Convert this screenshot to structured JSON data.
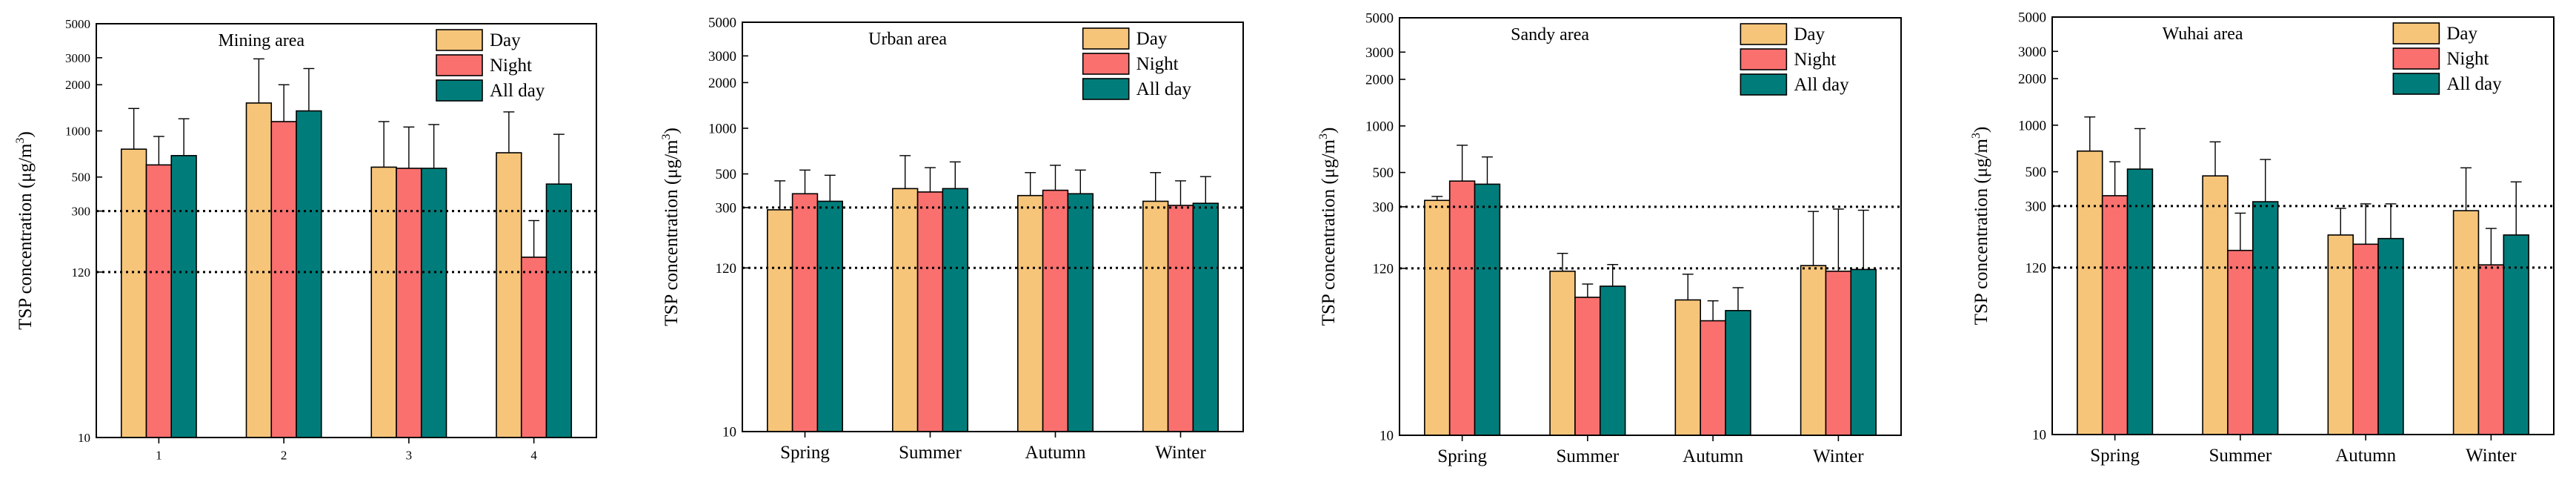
{
  "figure": {
    "colors": {
      "Day": "#f7c57a",
      "Night": "#fa706f",
      "All day": "#007d7a"
    },
    "reference_lines": [
      300,
      120
    ]
  },
  "chart_data": [
    {
      "type": "bar",
      "title": "Mining area",
      "ylabel": "TSP concentration (μg/m³)",
      "ylabel_main": "TSP concentration (μg/m",
      "ylabel_sup": "3",
      "ylabel_end": ")",
      "yscale": "log",
      "ylim": [
        10,
        5000
      ],
      "yticks": [
        10,
        120,
        300,
        500,
        1000,
        2000,
        3000,
        5000
      ],
      "categories": [
        "1",
        "2",
        "3",
        "4"
      ],
      "legend": [
        "Day",
        "Night",
        "All day"
      ],
      "series": [
        {
          "name": "Day",
          "values": [
            760,
            1520,
            580,
            720
          ],
          "errors": [
            1400,
            2950,
            1150,
            1330
          ]
        },
        {
          "name": "Night",
          "values": [
            600,
            1150,
            570,
            150
          ],
          "errors": [
            920,
            2000,
            1060,
            260
          ]
        },
        {
          "name": "All day",
          "values": [
            690,
            1350,
            570,
            450
          ],
          "errors": [
            1200,
            2550,
            1100,
            950
          ]
        }
      ]
    },
    {
      "type": "bar",
      "title": "Urban area",
      "ylabel": "TSP concentration (μg/m³)",
      "ylabel_main": "TSP concentration (μg/m",
      "ylabel_sup": "3",
      "ylabel_end": ")",
      "yscale": "log",
      "ylim": [
        10,
        5000
      ],
      "yticks": [
        10,
        120,
        300,
        500,
        1000,
        2000,
        3000,
        5000
      ],
      "categories": [
        "Spring",
        "Summer",
        "Autumn",
        "Winter"
      ],
      "legend": [
        "Day",
        "Night",
        "All day"
      ],
      "series": [
        {
          "name": "Day",
          "values": [
            290,
            400,
            360,
            330
          ],
          "errors": [
            450,
            660,
            510,
            510
          ]
        },
        {
          "name": "Night",
          "values": [
            370,
            380,
            390,
            310
          ],
          "errors": [
            530,
            550,
            570,
            450
          ]
        },
        {
          "name": "All day",
          "values": [
            330,
            400,
            370,
            320
          ],
          "errors": [
            490,
            600,
            530,
            480
          ]
        }
      ]
    },
    {
      "type": "bar",
      "title": "Sandy area",
      "ylabel": "TSP concentration (μg/m³)",
      "ylabel_main": "TSP concentration (μg/m",
      "ylabel_sup": "3",
      "ylabel_end": ")",
      "yscale": "log",
      "ylim": [
        10,
        5000
      ],
      "yticks": [
        10,
        120,
        300,
        500,
        1000,
        2000,
        3000,
        5000
      ],
      "categories": [
        "Spring",
        "Summer",
        "Autumn",
        "Winter"
      ],
      "legend": [
        "Day",
        "Night",
        "All day"
      ],
      "series": [
        {
          "name": "Day",
          "values": [
            330,
            115,
            75,
            125
          ],
          "errors": [
            350,
            150,
            110,
            280
          ]
        },
        {
          "name": "Night",
          "values": [
            440,
            78,
            55,
            115
          ],
          "errors": [
            750,
            95,
            74,
            290
          ]
        },
        {
          "name": "All day",
          "values": [
            420,
            92,
            64,
            118
          ],
          "errors": [
            630,
            127,
            90,
            285
          ]
        }
      ]
    },
    {
      "type": "bar",
      "title": "Wuhai area",
      "ylabel": "TSP concentration (μg/m³)",
      "ylabel_main": "TSP concentration (μg/m",
      "ylabel_sup": "3",
      "ylabel_end": ")",
      "yscale": "log",
      "ylim": [
        10,
        5000
      ],
      "yticks": [
        10,
        120,
        300,
        500,
        1000,
        2000,
        3000,
        5000
      ],
      "categories": [
        "Spring",
        "Summer",
        "Autumn",
        "Winter"
      ],
      "legend": [
        "Day",
        "Night",
        "All day"
      ],
      "series": [
        {
          "name": "Day",
          "values": [
            680,
            470,
            195,
            280
          ],
          "errors": [
            1130,
            780,
            290,
            530
          ]
        },
        {
          "name": "Night",
          "values": [
            350,
            155,
            170,
            125
          ],
          "errors": [
            580,
            270,
            310,
            215
          ]
        },
        {
          "name": "All day",
          "values": [
            520,
            320,
            185,
            195
          ],
          "errors": [
            950,
            600,
            310,
            430
          ]
        }
      ]
    }
  ]
}
